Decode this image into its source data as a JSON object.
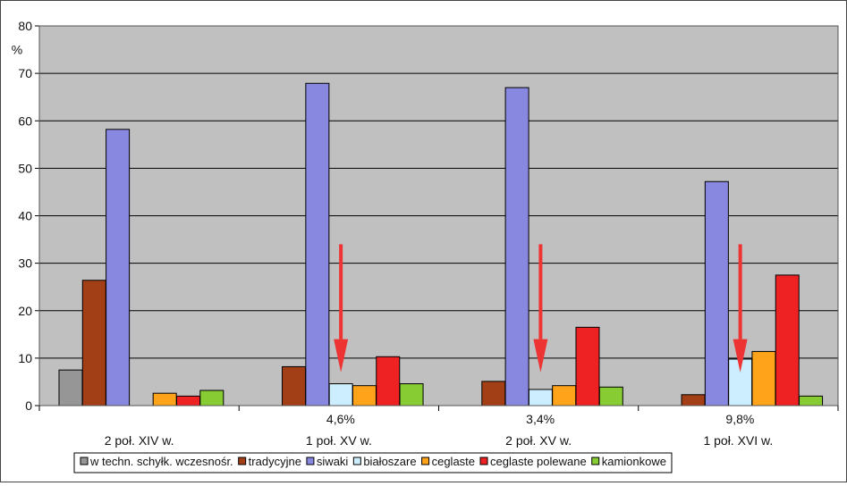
{
  "chart_data": {
    "type": "bar",
    "ylabel": "%",
    "ylim": [
      0,
      80
    ],
    "yticks": [
      0,
      10,
      20,
      30,
      40,
      50,
      60,
      70,
      80
    ],
    "grid": true,
    "legend_position": "bottom",
    "categories": [
      "2 poł. XIV w.",
      "1 poł. XV w.",
      "2 poł. XV w.",
      "1 poł. XVI w."
    ],
    "series": [
      {
        "name": "w techn. schyłk. wczesnośr.",
        "color": "#969696",
        "values": [
          7.5,
          null,
          null,
          null
        ]
      },
      {
        "name": "tradycyjne",
        "color": "#a33f16",
        "values": [
          26.4,
          8.2,
          5.1,
          2.3
        ]
      },
      {
        "name": "siwaki",
        "color": "#8888e0",
        "values": [
          58.2,
          67.9,
          67.0,
          47.2
        ]
      },
      {
        "name": "białoszare",
        "color": "#cceeff",
        "values": [
          null,
          4.6,
          3.4,
          9.8
        ]
      },
      {
        "name": "ceglaste",
        "color": "#ffa31a",
        "values": [
          2.6,
          4.2,
          4.2,
          11.4
        ]
      },
      {
        "name": "ceglaste polewane",
        "color": "#ee2222",
        "values": [
          2.0,
          10.3,
          16.5,
          27.5
        ]
      },
      {
        "name": "kamionkowe",
        "color": "#88cc33",
        "values": [
          3.2,
          4.6,
          3.9,
          2.0
        ]
      }
    ],
    "annotations": [
      {
        "category_index": 1,
        "text": "4,6%",
        "arrow_from": 34,
        "arrow_to": 14
      },
      {
        "category_index": 2,
        "text": "3,4%",
        "arrow_from": 34,
        "arrow_to": 14
      },
      {
        "category_index": 3,
        "text": "9,8%",
        "arrow_from": 34,
        "arrow_to": 14
      }
    ],
    "colors": {
      "plot_bg": "#c0c0c0",
      "arrow": "#ee3333"
    }
  }
}
